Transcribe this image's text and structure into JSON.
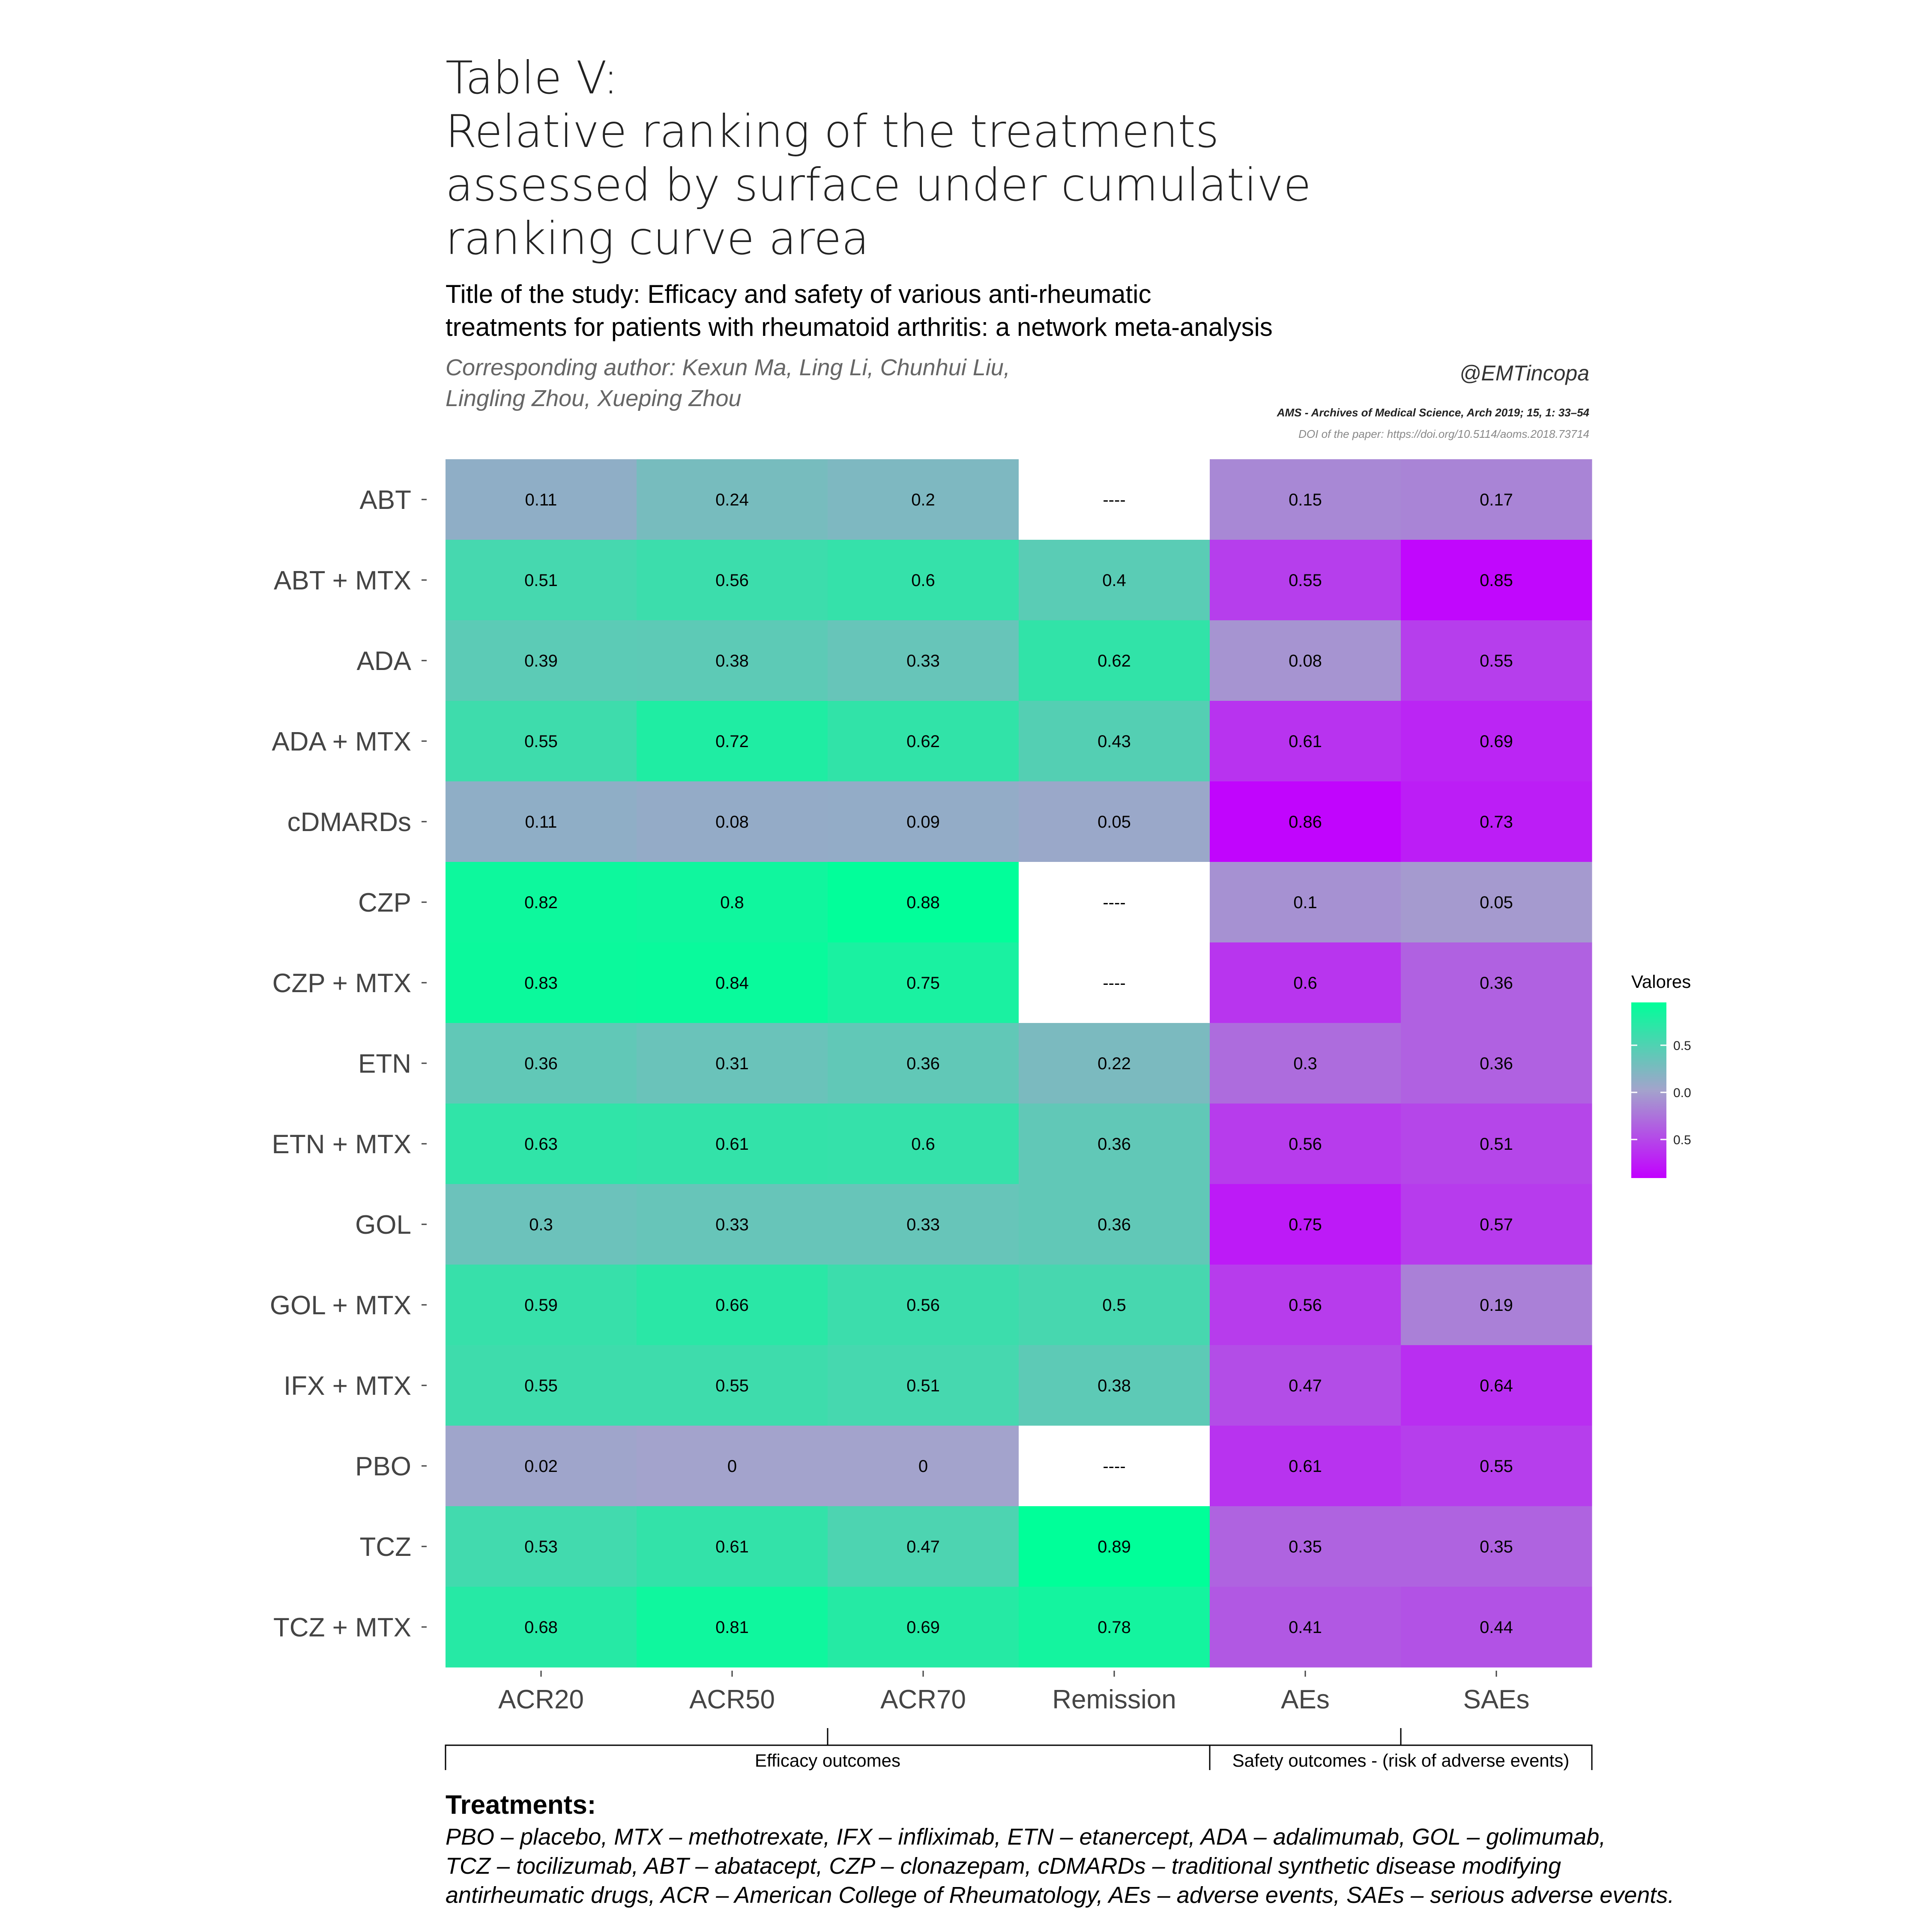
{
  "header": {
    "title_lines": [
      "Table V:",
      "Relative ranking of the treatments",
      "assessed by surface under cumulative",
      "ranking curve area"
    ],
    "study_lines": [
      "Title of the study: Efficacy and safety of various anti-rheumatic",
      "treatments for patients with rheumatoid arthritis: a network meta-analysis"
    ],
    "author_lines": [
      "Corresponding author: Kexun Ma, Ling Li, Chunhui Liu,",
      "Lingling Zhou, Xueping Zhou"
    ],
    "handle": "@EMTincopa",
    "journal": "AMS - Archives of Medical Science,  Arch 2019; 15, 1: 33–54",
    "doi": "DOI of the paper: https://doi.org/10.5114/aoms.2018.73714"
  },
  "chart_data": {
    "type": "heatmap",
    "rows": [
      "ABT",
      "ABT + MTX",
      "ADA",
      "ADA + MTX",
      "cDMARDs",
      "CZP",
      "CZP + MTX",
      "ETN",
      "ETN + MTX",
      "GOL",
      "GOL + MTX",
      "IFX + MTX",
      "PBO",
      "TCZ",
      "TCZ + MTX"
    ],
    "columns": [
      "ACR20",
      "ACR50",
      "ACR70",
      "Remission",
      "AEs",
      "SAEs"
    ],
    "values": [
      [
        0.11,
        0.24,
        0.2,
        null,
        0.15,
        0.17
      ],
      [
        0.51,
        0.56,
        0.6,
        0.4,
        0.55,
        0.85
      ],
      [
        0.39,
        0.38,
        0.33,
        0.62,
        0.08,
        0.55
      ],
      [
        0.55,
        0.72,
        0.62,
        0.43,
        0.61,
        0.69
      ],
      [
        0.11,
        0.08,
        0.09,
        0.05,
        0.86,
        0.73
      ],
      [
        0.82,
        0.8,
        0.88,
        null,
        0.1,
        0.05
      ],
      [
        0.83,
        0.84,
        0.75,
        null,
        0.6,
        0.36
      ],
      [
        0.36,
        0.31,
        0.36,
        0.22,
        0.3,
        0.36
      ],
      [
        0.63,
        0.61,
        0.6,
        0.36,
        0.56,
        0.51
      ],
      [
        0.3,
        0.33,
        0.33,
        0.36,
        0.75,
        0.57
      ],
      [
        0.59,
        0.66,
        0.56,
        0.5,
        0.56,
        0.19
      ],
      [
        0.55,
        0.55,
        0.51,
        0.38,
        0.47,
        0.64
      ],
      [
        0.02,
        0,
        0,
        null,
        0.61,
        0.55
      ],
      [
        0.53,
        0.61,
        0.47,
        0.89,
        0.35,
        0.35
      ],
      [
        0.68,
        0.81,
        0.69,
        0.78,
        0.41,
        0.44
      ]
    ],
    "missing_label": "----",
    "column_groups": [
      {
        "label": "Efficacy outcomes",
        "columns": [
          "ACR20",
          "ACR50",
          "ACR70",
          "Remission"
        ],
        "color_scale": "green"
      },
      {
        "label": "Safety outcomes - (risk of adverse events)",
        "columns": [
          "AEs",
          "SAEs"
        ],
        "color_scale": "purple"
      }
    ],
    "color_scale": {
      "mid_color": "#a3a3cc",
      "efficacy_high_color": "#00ff99",
      "safety_high_color": "#c200ff",
      "missing_color": "#ffffff"
    },
    "legend": {
      "title": "Valores",
      "ticks": [
        "0.5",
        "0.0",
        "0.5"
      ],
      "position": "right"
    }
  },
  "footnote": {
    "heading": "Treatments:",
    "lines": [
      "PBO – placebo, MTX – methotrexate, IFX – infliximab, ETN – etanercept, ADA – adalimumab, GOL – golimumab,",
      "TCZ – tocilizumab, ABT – abatacept, CZP – clonazepam, cDMARDs – traditional synthetic disease modifying",
      "antirheumatic drugs, ACR – American College of Rheumatology, AEs – adverse events, SAEs – serious adverse events."
    ]
  }
}
